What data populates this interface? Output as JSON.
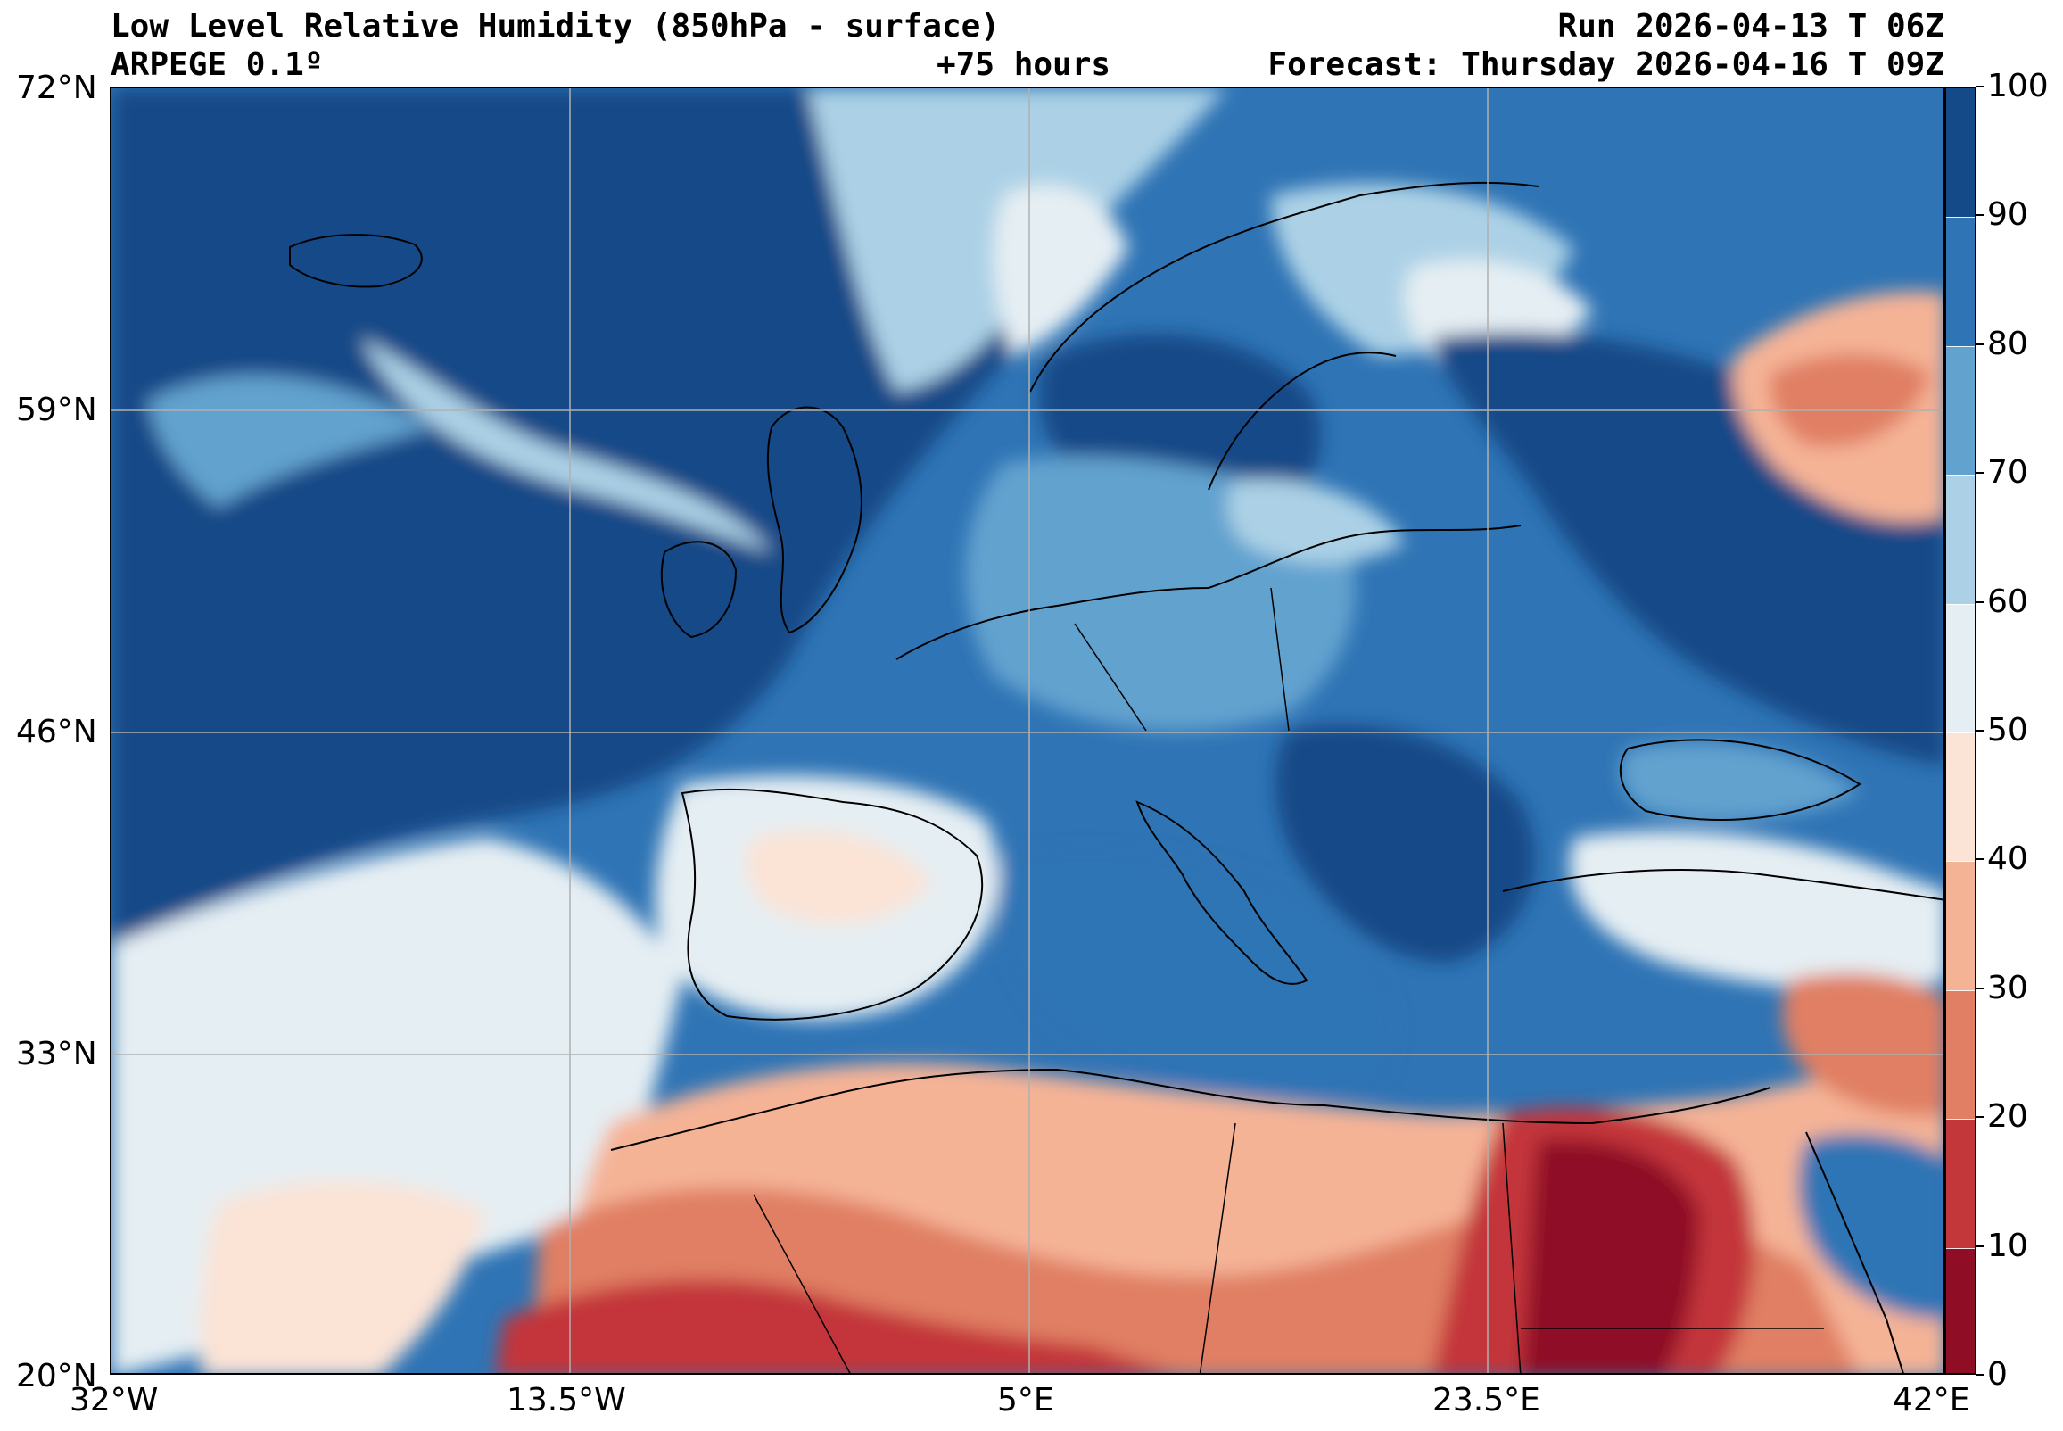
{
  "header": {
    "title": "Low Level Relative Humidity (850hPa - surface)",
    "run": "Run 2026-04-13 T 06Z",
    "model": "ARPEGE 0.1º",
    "lead": "+75 hours",
    "forecast": "Forecast: Thursday 2026-04-16 T 09Z"
  },
  "map": {
    "lat_ticks": [
      "72°N",
      "59°N",
      "46°N",
      "33°N",
      "20°N"
    ],
    "lon_ticks": [
      "32°W",
      "13.5°W",
      "5°E",
      "23.5°E",
      "42°E"
    ],
    "lat_range": [
      20,
      72
    ],
    "lon_range": [
      -32,
      42
    ],
    "gridlines": true
  },
  "colorbar": {
    "levels": [
      "100",
      "90",
      "80",
      "70",
      "60",
      "50",
      "40",
      "30",
      "20",
      "10",
      "0"
    ],
    "colors": [
      "#144a87",
      "#2f74b5",
      "#62a2cf",
      "#acd1e6",
      "#e5eef3",
      "#fbe3d6",
      "#f5b396",
      "#e07f64",
      "#c3363a",
      "#8f0e26"
    ]
  }
}
